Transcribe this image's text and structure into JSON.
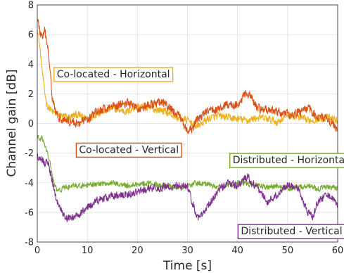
{
  "chart_data": {
    "type": "line",
    "title": "",
    "xlabel": "Time [s]",
    "ylabel": "Channel gain [dB]",
    "xlim": [
      0,
      60
    ],
    "ylim": [
      -8,
      8
    ],
    "xticks": [
      0,
      10,
      20,
      30,
      40,
      50,
      60
    ],
    "yticks": [
      -8,
      -6,
      -4,
      -2,
      0,
      2,
      4,
      6,
      8
    ],
    "grid": true,
    "legend": "none",
    "series": [
      {
        "color": "#EDB120",
        "x": [
          0,
          0.5,
          1,
          1.5,
          2,
          3,
          4,
          6,
          8,
          10,
          12,
          15,
          18,
          20,
          22,
          25,
          28,
          30,
          32,
          34,
          36,
          38,
          40,
          42,
          44,
          46,
          48,
          50,
          52,
          54,
          56,
          58,
          60
        ],
        "y": [
          6.5,
          5.2,
          3.5,
          2,
          1.2,
          0.8,
          0.6,
          0.4,
          0.6,
          0.3,
          0.7,
          1.0,
          0.8,
          1.2,
          1.0,
          0.9,
          0.4,
          0.2,
          -0.2,
          0.3,
          0.5,
          0.4,
          0.3,
          0.2,
          0.4,
          0.3,
          0.1,
          0.6,
          0.4,
          0.2,
          0.3,
          0.4,
          0.2
        ],
        "noise": 0.3
      },
      {
        "color": "#D95319",
        "x": [
          0,
          0.5,
          1,
          1.5,
          2,
          2.5,
          3,
          4,
          6,
          8,
          10,
          12,
          15,
          18,
          20,
          22,
          25,
          28,
          29,
          30,
          31,
          32,
          34,
          36,
          38,
          40,
          42,
          44,
          46,
          48,
          50,
          52,
          54,
          56,
          58,
          60
        ],
        "y": [
          7.2,
          6.2,
          5.8,
          6.2,
          5.3,
          4.0,
          1.8,
          0.5,
          0.2,
          0.0,
          0.3,
          0.8,
          1.2,
          1.4,
          1.0,
          1.2,
          1.4,
          0.6,
          0.2,
          -0.6,
          -0.4,
          0.3,
          0.8,
          1.0,
          1.2,
          1.3,
          2.1,
          1.0,
          0.9,
          0.8,
          0.6,
          0.7,
          1.0,
          0.5,
          0.3,
          -0.4
        ],
        "noise": 0.35
      },
      {
        "color": "#77AC30",
        "x": [
          0,
          0.5,
          1,
          1.5,
          2,
          2.5,
          3,
          3.5,
          4,
          5,
          6,
          8,
          10,
          12,
          15,
          18,
          20,
          22,
          25,
          28,
          30,
          32,
          34,
          36,
          38,
          40,
          42,
          44,
          46,
          48,
          50,
          52,
          54,
          56,
          58,
          60
        ],
        "y": [
          -0.9,
          -1.1,
          -1.0,
          -1.5,
          -2.0,
          -2.6,
          -3.5,
          -4.2,
          -4.6,
          -4.4,
          -4.3,
          -4.2,
          -4.2,
          -4.1,
          -4.0,
          -4.2,
          -4.1,
          -4.0,
          -4.2,
          -4.3,
          -4.2,
          -4.0,
          -4.1,
          -4.3,
          -4.2,
          -4.0,
          -4.1,
          -4.2,
          -4.3,
          -4.2,
          -4.4,
          -4.3,
          -4.2,
          -4.4,
          -4.3,
          -4.4
        ],
        "noise": 0.22
      },
      {
        "color": "#7E2F8E",
        "x": [
          0,
          0.5,
          1,
          1.5,
          2,
          2.5,
          3,
          3.5,
          4,
          5,
          6,
          7,
          8,
          10,
          12,
          15,
          18,
          20,
          22,
          25,
          28,
          30,
          31,
          32,
          34,
          36,
          38,
          40,
          42,
          44,
          46,
          48,
          50,
          52,
          54,
          55,
          56,
          58,
          60
        ],
        "y": [
          -2.2,
          -2.3,
          -2.4,
          -2.7,
          -2.5,
          -3.2,
          -3.9,
          -4.7,
          -5.3,
          -6.0,
          -6.4,
          -6.3,
          -6.2,
          -5.7,
          -5.2,
          -4.9,
          -4.8,
          -4.6,
          -4.4,
          -4.3,
          -4.2,
          -4.3,
          -5.3,
          -6.4,
          -5.6,
          -4.6,
          -4.0,
          -4.2,
          -3.6,
          -4.4,
          -5.3,
          -4.8,
          -4.1,
          -4.4,
          -6.0,
          -6.3,
          -5.3,
          -4.7,
          -5.6
        ],
        "noise": 0.3
      }
    ],
    "annotations": [
      {
        "text": "Co-located - Horizontal",
        "color": "#EDB120",
        "x": 15.2,
        "y": 3.35
      },
      {
        "text": "Co-located - Vertical",
        "color": "#D95319",
        "x": 18.3,
        "y": -1.75
      },
      {
        "text": "Distributed - Horizontal",
        "color": "#77AC30",
        "x": 50.5,
        "y": -2.45
      },
      {
        "text": "Distributed - Vertical",
        "color": "#7E2F8E",
        "x": 50.8,
        "y": -7.25
      }
    ]
  }
}
